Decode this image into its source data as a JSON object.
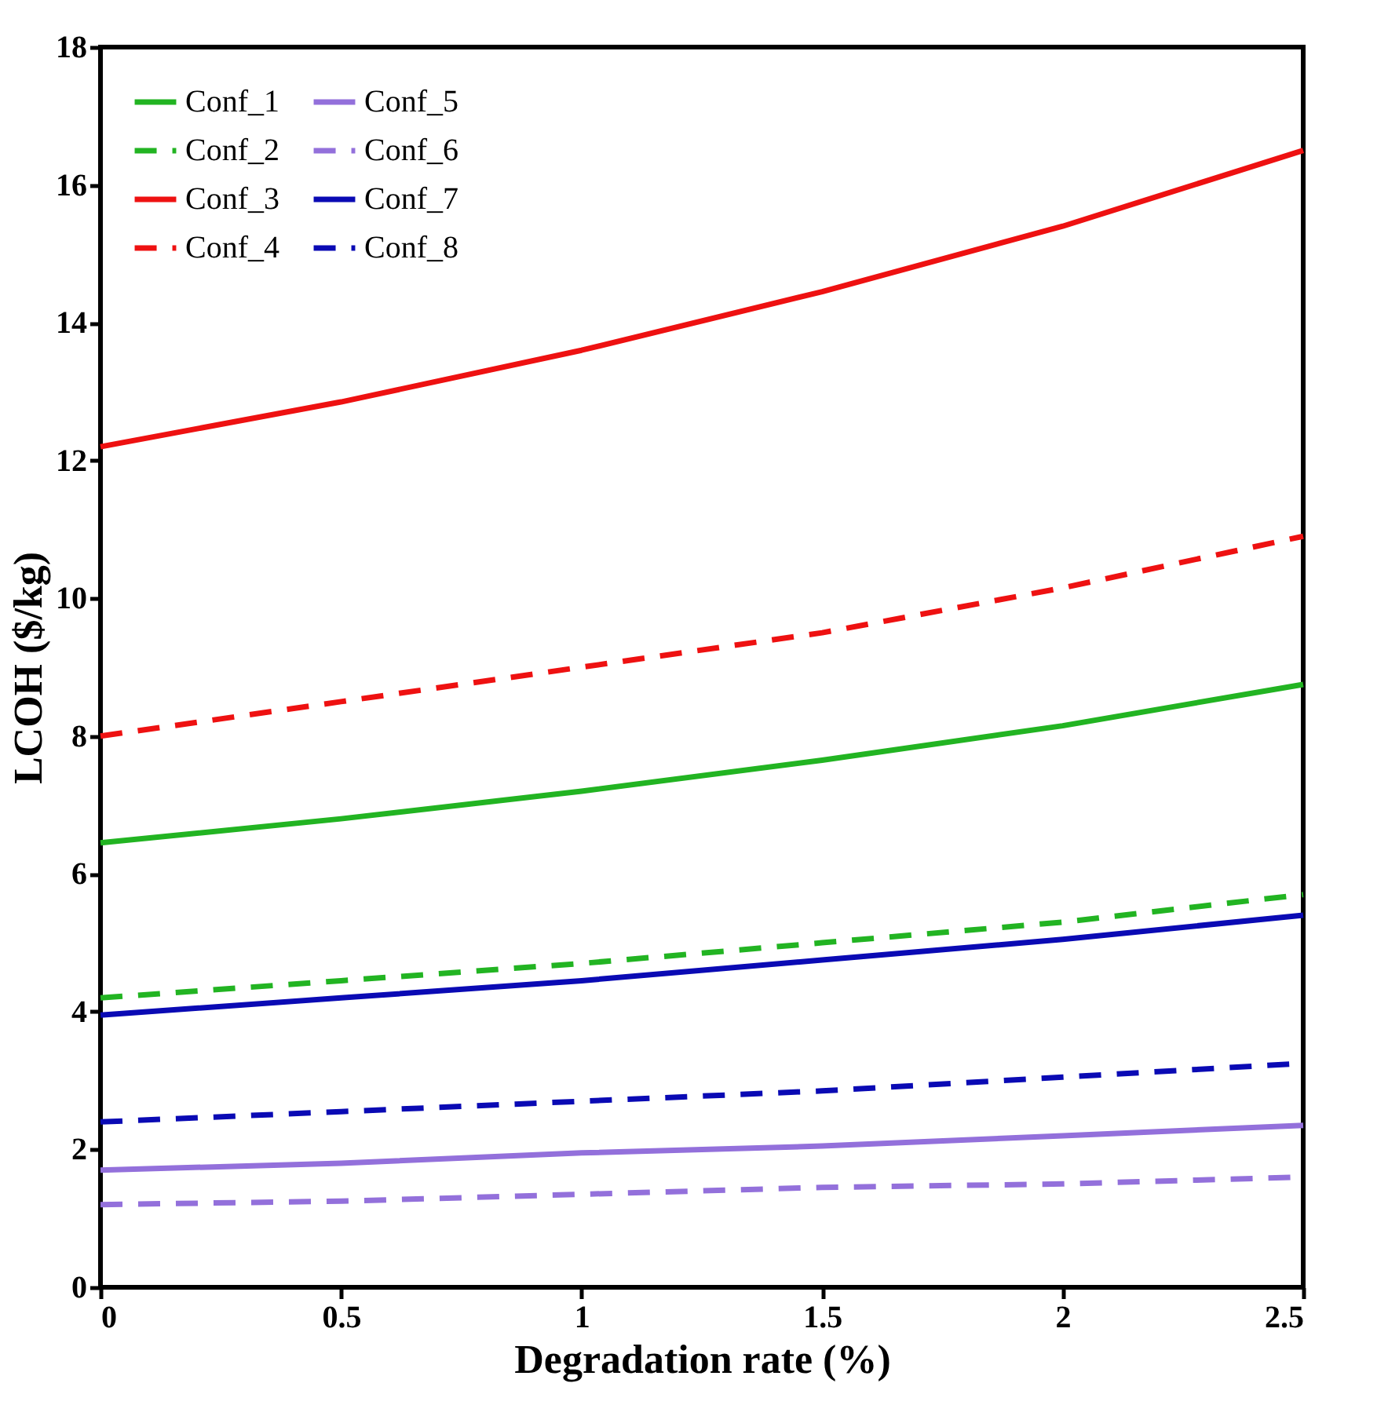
{
  "chart_data": {
    "type": "line",
    "xlabel": "Degradation rate (%)",
    "ylabel": "LCOH ($/kg)",
    "x": [
      0,
      0.5,
      1,
      1.5,
      2,
      2.5
    ],
    "xlim": [
      0,
      2.5
    ],
    "xticks": [
      0,
      0.5,
      1,
      1.5,
      2,
      2.5
    ],
    "ylim": [
      0,
      18
    ],
    "yticks": [
      0,
      2,
      4,
      6,
      8,
      10,
      12,
      14,
      16,
      18
    ],
    "grid": false,
    "legend": "top left",
    "marker": "none",
    "series": [
      {
        "name": "Conf_1",
        "color": "#22b422",
        "line_style": "solid",
        "values": [
          6.45,
          6.8,
          7.2,
          7.65,
          8.15,
          8.75
        ]
      },
      {
        "name": "Conf_2",
        "color": "#22b422",
        "line_style": "dashed",
        "values": [
          4.2,
          4.45,
          4.7,
          5.0,
          5.3,
          5.7
        ]
      },
      {
        "name": "Conf_3",
        "color": "#ee1111",
        "line_style": "solid",
        "values": [
          12.2,
          12.85,
          13.6,
          14.45,
          15.4,
          16.5
        ]
      },
      {
        "name": "Conf_4",
        "color": "#ee1111",
        "line_style": "dashed",
        "values": [
          8.0,
          8.5,
          9.0,
          9.5,
          10.15,
          10.9
        ]
      },
      {
        "name": "Conf_5",
        "color": "#9370db",
        "line_style": "solid",
        "values": [
          1.7,
          1.8,
          1.95,
          2.05,
          2.2,
          2.35
        ]
      },
      {
        "name": "Conf_6",
        "color": "#9370db",
        "line_style": "dashed",
        "values": [
          1.2,
          1.25,
          1.35,
          1.45,
          1.5,
          1.6
        ]
      },
      {
        "name": "Conf_7",
        "color": "#0a0ab4",
        "line_style": "solid",
        "values": [
          3.95,
          4.2,
          4.45,
          4.75,
          5.05,
          5.4
        ]
      },
      {
        "name": "Conf_8",
        "color": "#0a0ab4",
        "line_style": "dashed",
        "values": [
          2.4,
          2.55,
          2.7,
          2.85,
          3.05,
          3.25
        ]
      }
    ]
  }
}
